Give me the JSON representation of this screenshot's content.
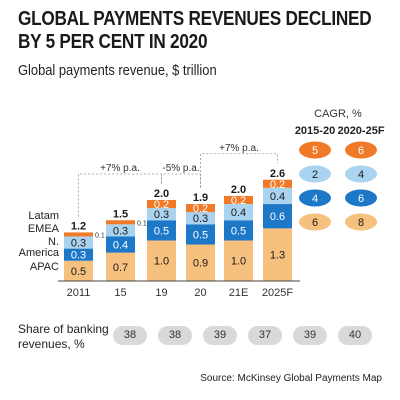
{
  "header": {
    "title_line1": "GLOBAL PAYMENTS REVENUES DECLINED",
    "title_line2": "BY 5 PER CENT IN 2020",
    "subtitle": "Global payments revenue, $ trillion"
  },
  "chart_data": {
    "type": "bar",
    "stacked": true,
    "categories": [
      "2011",
      "15",
      "19",
      "20",
      "21E",
      "2025F"
    ],
    "series": [
      {
        "name": "APAC",
        "color": "#f6c07e",
        "values": [
          0.5,
          0.7,
          1.0,
          0.9,
          1.0,
          1.3
        ],
        "labels": [
          "0.5",
          "0.7",
          "1.0",
          "0.9",
          "1.0",
          "1.3"
        ]
      },
      {
        "name": "N. America",
        "color": "#1e78c8",
        "values": [
          0.3,
          0.4,
          0.5,
          0.5,
          0.5,
          0.6
        ],
        "labels": [
          "0.3",
          "0.4",
          "0.5",
          "0.5",
          "0.5",
          "0.6"
        ]
      },
      {
        "name": "EMEA",
        "color": "#a9d3ef",
        "values": [
          0.3,
          0.3,
          0.3,
          0.3,
          0.4,
          0.4
        ],
        "labels": [
          "0.3",
          "0.3",
          "0.3",
          "0.3",
          "0.4",
          "0.4"
        ]
      },
      {
        "name": "Latam",
        "color": "#f07a28",
        "values": [
          0.1,
          0.1,
          0.2,
          0.2,
          0.2,
          0.2
        ],
        "labels": [
          "0.1",
          "0.1",
          "0.2",
          "0.2",
          "0.2",
          "0.2"
        ]
      }
    ],
    "totals": [
      "1.2",
      "1.5",
      "2.0",
      "1.9",
      "2.0",
      "2.6"
    ],
    "legend_lines": [
      "Latam",
      "EMEA",
      "N.",
      "America",
      "APAC"
    ],
    "annotations": [
      {
        "text": "+7% p.a.",
        "from": "2011",
        "to": "19"
      },
      {
        "text": "-5% p.a.",
        "from": "19",
        "to": "20"
      },
      {
        "text": "+7% p.a.",
        "from": "20",
        "to": "2025F"
      }
    ],
    "ylim": [
      0,
      2.6
    ]
  },
  "cagr": {
    "title": "CAGR, %",
    "col1_header": "2015-20",
    "col2_header": "2020-25F",
    "rows": [
      {
        "series": "Latam",
        "color": "#f07a28",
        "text_color": "#ffffff",
        "v1": "5",
        "v2": "6"
      },
      {
        "series": "EMEA",
        "color": "#a9d3ef",
        "text_color": "#1a1a1a",
        "v1": "2",
        "v2": "4"
      },
      {
        "series": "N. America",
        "color": "#1e78c8",
        "text_color": "#ffffff",
        "v1": "4",
        "v2": "6"
      },
      {
        "series": "APAC",
        "color": "#f6c07e",
        "text_color": "#1a1a1a",
        "v1": "6",
        "v2": "8"
      }
    ]
  },
  "share": {
    "label_line1": "Share of banking",
    "label_line2": "revenues, %",
    "values": [
      "38",
      "38",
      "39",
      "37",
      "39",
      "40"
    ]
  },
  "source": "Source: McKinsey Global Payments Map"
}
